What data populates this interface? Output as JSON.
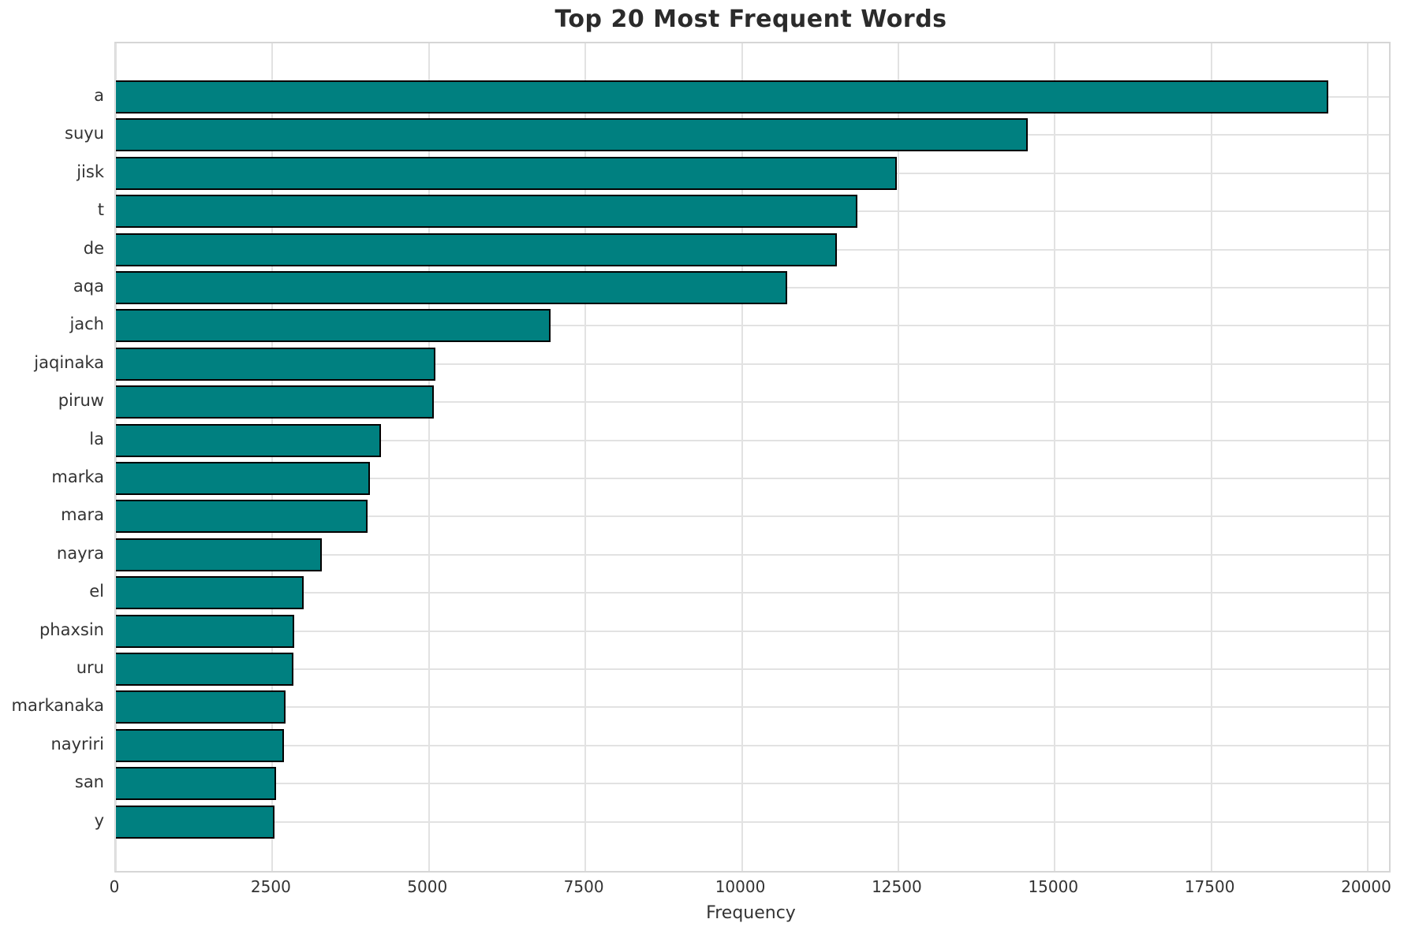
{
  "chart_data": {
    "type": "bar",
    "orientation": "horizontal",
    "title": "Top 20 Most Frequent Words",
    "xlabel": "Frequency",
    "ylabel": "",
    "categories": [
      "a",
      "suyu",
      "jisk",
      "t",
      "de",
      "aqa",
      "jach",
      "jaqinaka",
      "piruw",
      "la",
      "marka",
      "mara",
      "nayra",
      "el",
      "phaxsin",
      "uru",
      "markanaka",
      "nayriri",
      "san",
      "y"
    ],
    "values": [
      19370,
      14570,
      12470,
      11850,
      11520,
      10730,
      6950,
      5110,
      5080,
      4240,
      4060,
      4020,
      3290,
      3000,
      2850,
      2830,
      2710,
      2680,
      2560,
      2530
    ],
    "xticks": [
      0,
      2500,
      5000,
      7500,
      10000,
      12500,
      15000,
      17500,
      20000
    ],
    "xlim": [
      0,
      20340
    ],
    "grid": true,
    "legend": null,
    "colors": {
      "bar_fill": "#008080",
      "bar_edge": "#000000",
      "grid_line": "#e2e2e2",
      "spine": "#d6d6d6",
      "title_text": "#2b2b2b",
      "tick_text": "#333333",
      "background": "#ffffff"
    }
  }
}
